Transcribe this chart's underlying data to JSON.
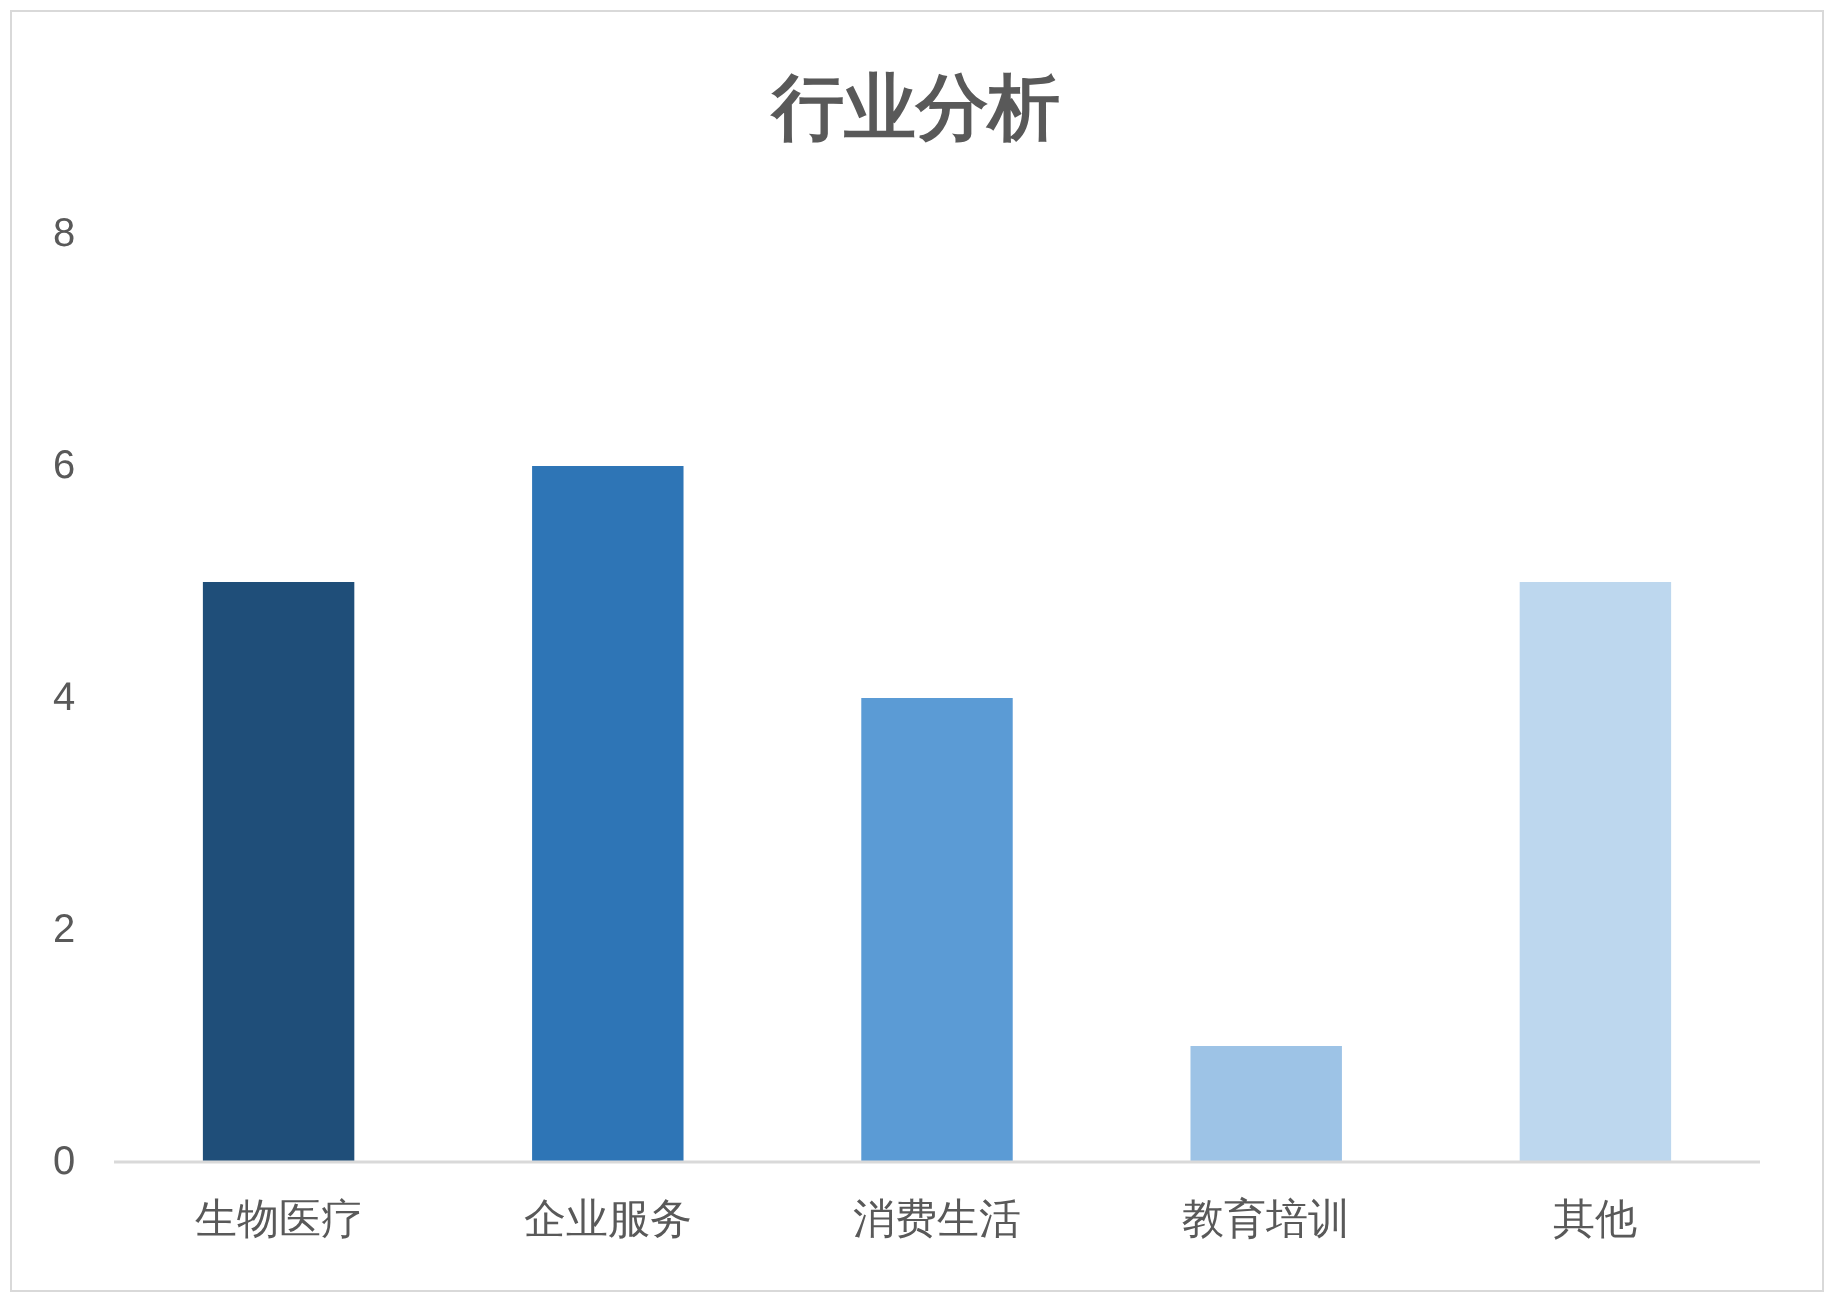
{
  "chart_data": {
    "type": "bar",
    "title": "行业分析",
    "categories": [
      "生物医疗",
      "企业服务",
      "消费生活",
      "教育培训",
      "其他"
    ],
    "values": [
      5,
      6,
      4,
      1,
      5
    ],
    "colors": [
      "#1f4e79",
      "#2e75b6",
      "#5b9bd5",
      "#9dc3e6",
      "#bdd7ee"
    ],
    "ylim": [
      0,
      8
    ],
    "yticks": [
      0,
      2,
      4,
      6,
      8
    ],
    "grid": false
  }
}
